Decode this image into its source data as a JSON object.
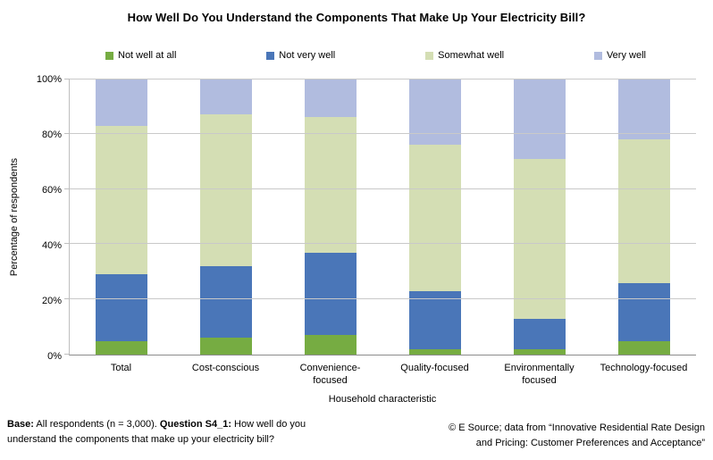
{
  "chart_data": {
    "type": "bar",
    "stacked": true,
    "title": "How Well Do You Understand the Components That Make Up Your Electricity Bill?",
    "categories": [
      "Total",
      "Cost-conscious",
      "Convenience-focused",
      "Quality-focused",
      "Environmentally focused",
      "Technology-focused"
    ],
    "series": [
      {
        "name": "Not well at all",
        "color": "#76ac42",
        "values": [
          5,
          6,
          7,
          2,
          2,
          5
        ]
      },
      {
        "name": "Not very well",
        "color": "#4a76b8",
        "values": [
          24,
          26,
          30,
          21,
          11,
          21
        ]
      },
      {
        "name": "Somewhat well",
        "color": "#d4deb4",
        "values": [
          54,
          55,
          49,
          53,
          58,
          52
        ]
      },
      {
        "name": "Very well",
        "color": "#b1bcdf",
        "values": [
          17,
          13,
          14,
          24,
          29,
          22
        ]
      }
    ],
    "cumulative_tops_pct": {
      "not_well_at_all": [
        5,
        6,
        7,
        2,
        2,
        5
      ],
      "not_very_well": [
        29,
        32,
        37,
        23,
        13,
        26
      ],
      "somewhat_well": [
        83,
        87,
        86,
        76,
        71,
        78
      ],
      "very_well": [
        100,
        100,
        100,
        100,
        100,
        100
      ]
    },
    "xlabel": "Household characteristic",
    "ylabel": "Percentage of respondents",
    "y_ticks": [
      "0%",
      "20%",
      "40%",
      "60%",
      "80%",
      "100%"
    ],
    "ylim": [
      0,
      100
    ],
    "grid": true,
    "legend_position": "top"
  },
  "footer": {
    "base_label": "Base:",
    "base_text": " All respondents (n = 3,000). ",
    "question_label": "Question S4_1:",
    "question_text": " How well do you understand the components that make up your electricity bill?",
    "right_line1": "© E Source; data from “Innovative Residential Rate Design",
    "right_line2": "and Pricing: Customer Preferences and Acceptance”"
  },
  "colors": {
    "gridline": "#c9c9c9",
    "x_axis_line": "#8c8c8c",
    "y_axis_line": "#bfbfbf",
    "background": "#ffffff"
  }
}
